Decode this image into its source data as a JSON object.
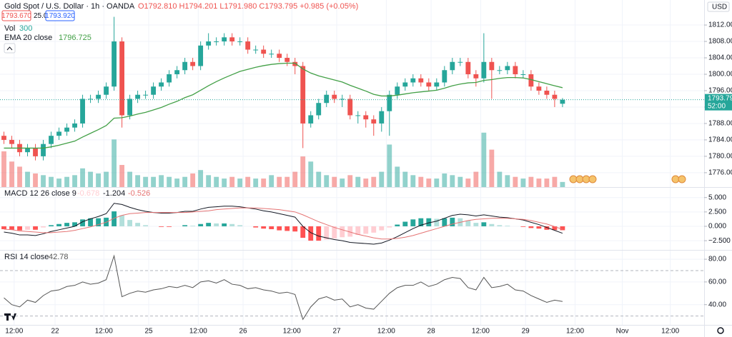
{
  "chart_data": [
    {
      "type": "candlestick",
      "title": "Gold Spot / U.S. Dollar · 1h · OANDA",
      "ohlc_text": "O1792.810 H1794.201 L1791.980 C1793.795 +0.985 (+0.05%)",
      "quote": {
        "sell": "1793.670",
        "spread": "25.0",
        "buy": "1793.920"
      },
      "currency": "USD",
      "countdown": "52:00",
      "up_color": "#26a69a",
      "down_color": "#ef5350",
      "open": [
        1785,
        1784,
        1783,
        1781,
        1782,
        1780,
        1783,
        1785,
        1786,
        1787,
        1788,
        1794,
        1794,
        1795,
        1797,
        1808,
        1790,
        1794,
        1795,
        1795,
        1797,
        1798,
        1800,
        1801,
        1803,
        1802,
        1807,
        1808,
        1808,
        1809,
        1808,
        1808,
        1806,
        1806,
        1805,
        1805,
        1804,
        1803,
        1802,
        1788,
        1790,
        1793,
        1795,
        1794,
        1794,
        1790,
        1790,
        1789,
        1788,
        1791,
        1795,
        1797,
        1798,
        1799,
        1798,
        1797,
        1798,
        1801,
        1803,
        1803,
        1800,
        1799,
        1803,
        1801,
        1801,
        1802,
        1800,
        1800,
        1797,
        1796,
        1795,
        1792.81
      ],
      "high": [
        1786,
        1785,
        1784,
        1783,
        1783,
        1784,
        1786,
        1787,
        1788,
        1789,
        1795,
        1795,
        1796,
        1798,
        1814,
        1809,
        1795,
        1796,
        1796,
        1798,
        1799,
        1801,
        1802,
        1804,
        1804,
        1808,
        1810,
        1809,
        1810,
        1810,
        1809,
        1809,
        1807,
        1807,
        1806,
        1806,
        1805,
        1804,
        1803,
        1791,
        1794,
        1796,
        1796,
        1795,
        1795,
        1791,
        1791,
        1790,
        1792,
        1796,
        1798,
        1799,
        1800,
        1800,
        1799,
        1799,
        1802,
        1804,
        1804,
        1804,
        1801,
        1810,
        1804,
        1802,
        1803,
        1803,
        1801,
        1801,
        1798,
        1797,
        1796,
        1794.201
      ],
      "low": [
        1783,
        1782,
        1780,
        1780,
        1779,
        1779,
        1782,
        1784,
        1785,
        1786,
        1787,
        1793,
        1793,
        1794,
        1796,
        1787,
        1789,
        1793,
        1794,
        1794,
        1796,
        1797,
        1799,
        1800,
        1801,
        1801,
        1806,
        1807,
        1807,
        1807,
        1807,
        1805,
        1805,
        1804,
        1804,
        1803,
        1802,
        1800,
        1782,
        1787,
        1789,
        1792,
        1793,
        1792,
        1789,
        1788,
        1787,
        1785,
        1786,
        1785,
        1794,
        1796,
        1797,
        1797,
        1796,
        1796,
        1797,
        1800,
        1802,
        1799,
        1797,
        1798,
        1794,
        1800,
        1800,
        1799,
        1799,
        1796,
        1795,
        1794,
        1792,
        1791.98
      ],
      "close": [
        1784,
        1783,
        1781,
        1782,
        1780,
        1783,
        1785,
        1786,
        1787,
        1788,
        1794,
        1794,
        1795,
        1797,
        1808,
        1790,
        1794,
        1795,
        1795,
        1797,
        1798,
        1800,
        1801,
        1803,
        1802,
        1807,
        1808,
        1808,
        1809,
        1808,
        1808,
        1806,
        1806,
        1805,
        1805,
        1804,
        1803,
        1802,
        1788,
        1790,
        1793,
        1795,
        1794,
        1794,
        1790,
        1790,
        1789,
        1788,
        1791,
        1795,
        1797,
        1798,
        1799,
        1798,
        1797,
        1798,
        1801,
        1803,
        1803,
        1800,
        1799,
        1803,
        1801,
        1801,
        1802,
        1800,
        1800,
        1797,
        1796,
        1795,
        1794,
        1793.795
      ],
      "ema": {
        "name": "EMA 20 close",
        "color": "#43a047",
        "values": [
          1782,
          1782,
          1782,
          1782,
          1782,
          1782,
          1782.3,
          1782.7,
          1783.2,
          1783.7,
          1784.7,
          1785.6,
          1786.5,
          1787.5,
          1789.3,
          1789.4,
          1789.8,
          1790.3,
          1790.7,
          1791.3,
          1791.9,
          1792.7,
          1793.4,
          1794.3,
          1795,
          1796.1,
          1797.2,
          1798.2,
          1799.1,
          1799.9,
          1800.7,
          1801.2,
          1801.7,
          1802.1,
          1802.4,
          1802.6,
          1802.7,
          1802.7,
          1801.3,
          1800.3,
          1799.6,
          1799.1,
          1798.6,
          1798.1,
          1797.3,
          1796.6,
          1795.9,
          1795.1,
          1794.7,
          1794.7,
          1794.9,
          1795.2,
          1795.5,
          1795.7,
          1795.9,
          1796.1,
          1796.6,
          1797.2,
          1797.6,
          1797.9,
          1798,
          1798.5,
          1798.7,
          1799,
          1799.2,
          1799.2,
          1799.1,
          1798.7,
          1798.2,
          1797.7,
          1797.2,
          1796.725
        ]
      },
      "volume": {
        "name": "Vol",
        "color": "#26a69a",
        "values": [
          2100,
          1500,
          1200,
          900,
          800,
          700,
          600,
          500,
          600,
          700,
          1100,
          900,
          800,
          900,
          2800,
          1300,
          900,
          700,
          600,
          600,
          700,
          600,
          500,
          600,
          800,
          1000,
          700,
          600,
          500,
          600,
          500,
          600,
          500,
          500,
          700,
          600,
          600,
          900,
          1800,
          1500,
          900,
          700,
          600,
          500,
          700,
          600,
          500,
          600,
          900,
          2500,
          1200,
          900,
          700,
          600,
          500,
          500,
          800,
          700,
          600,
          500,
          900,
          3200,
          2200,
          900,
          700,
          600,
          500,
          600,
          500,
          500,
          600,
          300
        ],
        "ylim": [
          0,
          11000
        ]
      },
      "ylim": [
        1772.5,
        1818.1
      ],
      "yticks": [
        {
          "value": 1812,
          "label": "1812.000"
        },
        {
          "value": 1808,
          "label": "1808.000"
        },
        {
          "value": 1804,
          "label": "1804.000"
        },
        {
          "value": 1800,
          "label": "1800.000"
        },
        {
          "value": 1796,
          "label": "1796.000"
        },
        {
          "value": 1792,
          "label": "1792.000"
        },
        {
          "value": 1788,
          "label": "1788.000"
        },
        {
          "value": 1784,
          "label": "1784.000"
        },
        {
          "value": 1780,
          "label": "1780.000"
        },
        {
          "value": 1776,
          "label": "1776.000"
        }
      ],
      "xlim": [
        -0.5,
        89
      ],
      "xticks": [
        {
          "value": 1.3,
          "label": "12:00"
        },
        {
          "value": 6.5,
          "label": "22"
        },
        {
          "value": 12.7,
          "label": "12:00"
        },
        {
          "value": 18.4,
          "label": "25"
        },
        {
          "value": 24.7,
          "label": "12:00"
        },
        {
          "value": 30.4,
          "label": "26"
        },
        {
          "value": 36.6,
          "label": "12:00"
        },
        {
          "value": 42.3,
          "label": "27"
        },
        {
          "value": 48.6,
          "label": "12:00"
        },
        {
          "value": 54.3,
          "label": "28"
        },
        {
          "value": 60.6,
          "label": "12:00"
        },
        {
          "value": 66.3,
          "label": "29"
        },
        {
          "value": 72.6,
          "label": "12:00"
        },
        {
          "value": 78.6,
          "label": "Nov"
        },
        {
          "value": 84.7,
          "label": "12:00"
        }
      ],
      "grid": true
    },
    {
      "type": "macd",
      "title": "MACD 12 26 close 9",
      "series": [
        {
          "colors": [
            "#26a69a",
            "#b2dfdb",
            "#ff5252",
            "#ffcdd2"
          ],
          "values": [
            -0.5,
            -0.6,
            -0.7,
            -0.6,
            -0.6,
            -0.2,
            0.2,
            0.4,
            0.6,
            0.7,
            1.2,
            1.4,
            1.4,
            1.5,
            2.6,
            1.9,
            1.1,
            0.6,
            0.2,
            0,
            -0.1,
            -0.1,
            0,
            0.2,
            0.1,
            0.4,
            0.6,
            0.5,
            0.5,
            0.4,
            0.2,
            0,
            -0.2,
            -0.4,
            -0.5,
            -0.7,
            -0.8,
            -0.9,
            -2,
            -2.5,
            -2.5,
            -2.3,
            -2.1,
            -1.9,
            -1.8,
            -1.5,
            -1.3,
            -1.1,
            -0.7,
            -0.2,
            0.3,
            0.8,
            1.2,
            1.4,
            1.4,
            1.3,
            1.4,
            1.5,
            1.4,
            1,
            0.6,
            0.7,
            0.4,
            0.2,
            0.1,
            0,
            -0.1,
            -0.3,
            -0.4,
            -0.6,
            -0.65,
            -0.678
          ]
        },
        {
          "color": "#131722",
          "values": [
            -1,
            -1.2,
            -1.5,
            -1.5,
            -1.6,
            -1.3,
            -0.9,
            -0.6,
            -0.3,
            0,
            0.8,
            1.3,
            1.7,
            2.2,
            4,
            3.8,
            3.3,
            2.9,
            2.6,
            2.4,
            2.3,
            2.3,
            2.4,
            2.6,
            2.6,
            3,
            3.3,
            3.4,
            3.5,
            3.5,
            3.4,
            3.2,
            3,
            2.7,
            2.5,
            2.2,
            1.9,
            1.6,
            0,
            -1.1,
            -1.7,
            -2,
            -2.3,
            -2.5,
            -2.8,
            -2.9,
            -3,
            -3.1,
            -2.9,
            -2.4,
            -1.8,
            -1.1,
            -0.4,
            0.2,
            0.6,
            0.9,
            1.4,
            1.9,
            2.1,
            2,
            1.8,
            2,
            1.8,
            1.6,
            1.5,
            1.3,
            1.1,
            0.7,
            0.3,
            -0.2,
            -0.7,
            -1.204
          ]
        },
        {
          "color": "#e57373",
          "values": [
            -0.5,
            -0.6,
            -0.8,
            -0.9,
            -1,
            -1.1,
            -1.1,
            -1,
            -0.9,
            -0.7,
            -0.4,
            -0.1,
            0.3,
            0.7,
            1.4,
            1.9,
            2.2,
            2.3,
            2.4,
            2.4,
            2.4,
            2.4,
            2.4,
            2.4,
            2.5,
            2.6,
            2.7,
            2.9,
            3,
            3.1,
            3.2,
            3.2,
            3.2,
            3.1,
            3,
            2.9,
            2.7,
            2.5,
            2,
            1.4,
            0.8,
            0.3,
            -0.2,
            -0.6,
            -1,
            -1.4,
            -1.7,
            -2,
            -2.2,
            -2.2,
            -2.1,
            -1.9,
            -1.6,
            -1.2,
            -0.8,
            -0.4,
            0,
            0.4,
            0.7,
            1,
            1.2,
            1.3,
            1.4,
            1.4,
            1.4,
            1.3,
            1.2,
            1,
            0.7,
            0.4,
            -0.05,
            -0.526
          ]
        }
      ],
      "ylim": [
        -4.1,
        6.7
      ],
      "yticks": [
        {
          "value": 5,
          "label": "5.000"
        },
        {
          "value": 2.5,
          "label": "2.500"
        },
        {
          "value": 0,
          "label": "0.000"
        },
        {
          "value": -2.5,
          "label": "−2.500"
        }
      ]
    },
    {
      "type": "line",
      "title": "RSI 14 close",
      "color": "#555555",
      "values": [
        46,
        40,
        38,
        44,
        42,
        48,
        52,
        53,
        56,
        57,
        60,
        58,
        59,
        62,
        83,
        47,
        50,
        52,
        51,
        53,
        54,
        56,
        55,
        57,
        55,
        60,
        61,
        59,
        62,
        58,
        57,
        54,
        55,
        53,
        52,
        50,
        51,
        49,
        27,
        38,
        45,
        47,
        44,
        45,
        38,
        40,
        37,
        36,
        43,
        50,
        55,
        57,
        57,
        60,
        56,
        58,
        62,
        64,
        63,
        55,
        53,
        64,
        55,
        56,
        58,
        53,
        52,
        48,
        45,
        42,
        44,
        42.78
      ],
      "levels": [
        70,
        30
      ],
      "ylim": [
        22.2,
        87.6
      ],
      "yticks": [
        {
          "value": 80,
          "label": "80.00"
        },
        {
          "value": 60,
          "label": "60.00"
        },
        {
          "value": 40,
          "label": "40.00"
        }
      ]
    }
  ]
}
